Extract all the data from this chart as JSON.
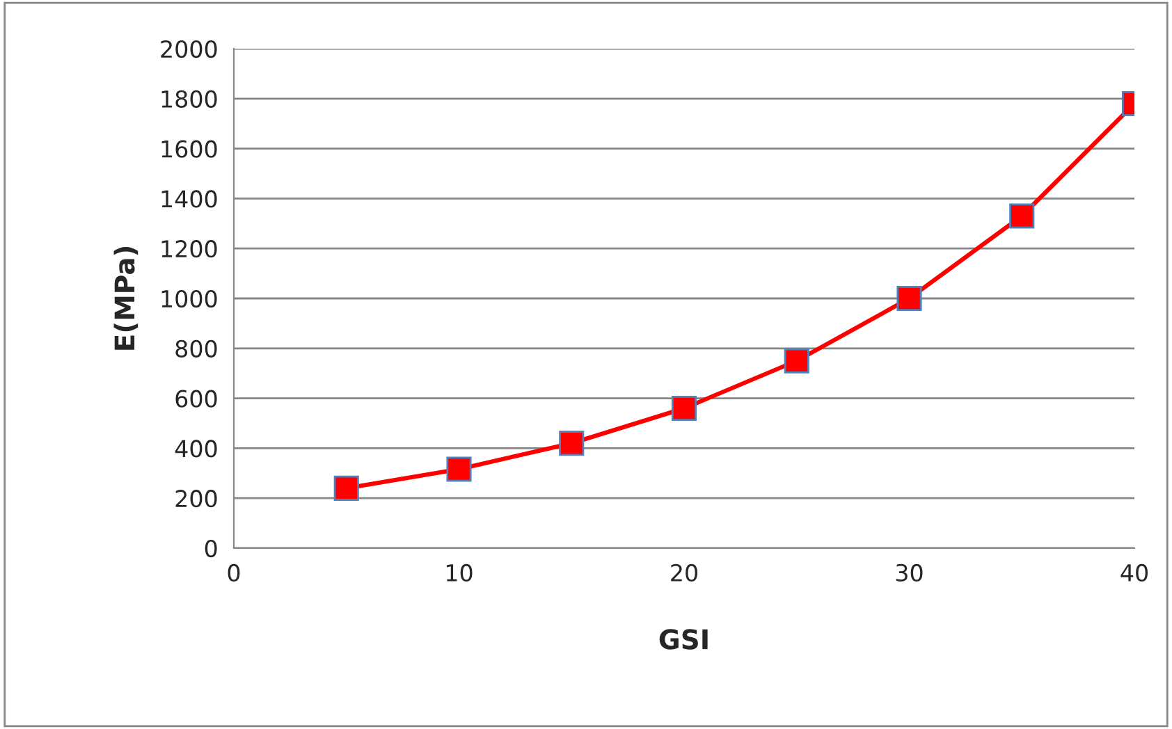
{
  "chart_data": {
    "type": "line",
    "xlabel": "GSI",
    "ylabel": "E(MPa)",
    "x": [
      5,
      10,
      15,
      20,
      25,
      30,
      35,
      40
    ],
    "series": [
      {
        "color": "#ff0000",
        "values": [
          240,
          316,
          420,
          560,
          750,
          1000,
          1330,
          1780
        ]
      }
    ],
    "xlim": [
      0,
      40
    ],
    "xticks": [
      0,
      10,
      20,
      30,
      40
    ],
    "ylim": [
      0,
      2000
    ],
    "yticks": [
      0,
      200,
      400,
      600,
      800,
      1000,
      1200,
      1400,
      1600,
      1800,
      2000
    ],
    "grid": "y",
    "marker": "square",
    "line_style": "solid"
  }
}
